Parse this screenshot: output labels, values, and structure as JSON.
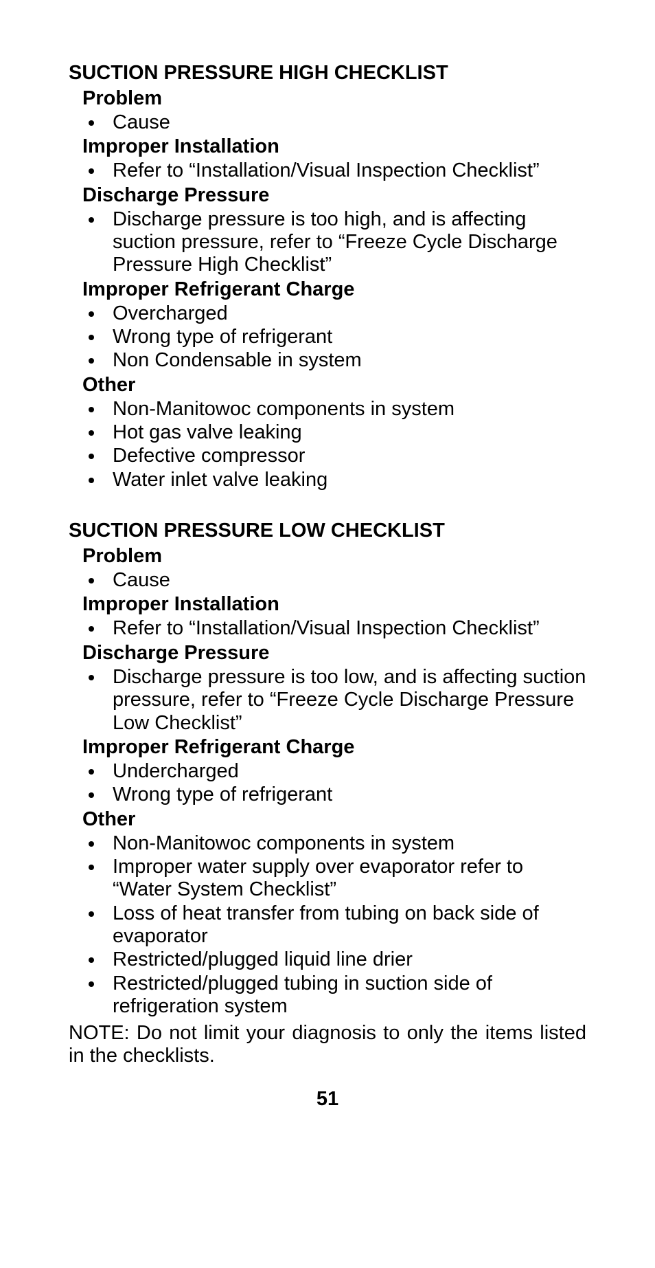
{
  "high": {
    "title": "SUCTION PRESSURE HIGH CHECKLIST",
    "sections": {
      "problem_label": "Problem",
      "problem_item": "Cause",
      "install_label": "Improper Installation",
      "install_item": "Refer to “Installation/Visual Inspection Checklist”",
      "discharge_label": "Discharge Pressure",
      "discharge_item": "Discharge pressure is too high, and is affecting suction pressure, refer to “Freeze Cycle Discharge Pressure High Checklist”",
      "charge_label": "Improper Refrigerant Charge",
      "charge_items": [
        "Overcharged",
        "Wrong type of refrigerant",
        "Non Condensable in system"
      ],
      "other_label": "Other",
      "other_items": [
        "Non-Manitowoc components in system",
        "Hot gas valve leaking",
        "Defective compressor",
        "Water inlet valve leaking"
      ]
    }
  },
  "low": {
    "title": "SUCTION PRESSURE LOW CHECKLIST",
    "sections": {
      "problem_label": "Problem",
      "problem_item": "Cause",
      "install_label": "Improper Installation",
      "install_item": "Refer to “Installation/Visual Inspection Checklist”",
      "discharge_label": "Discharge Pressure",
      "discharge_item": "Discharge pressure is too low, and is affecting suction pressure, refer to “Freeze Cycle Discharge Pressure Low Checklist”",
      "charge_label": "Improper Refrigerant Charge",
      "charge_items": [
        "Undercharged",
        "Wrong type of refrigerant"
      ],
      "other_label": "Other",
      "other_items": [
        "Non-Manitowoc components in system",
        "Improper water supply over evaporator refer to “Water System Checklist”",
        "Loss of heat transfer from tubing on back side of evaporator",
        "Restricted/plugged liquid line drier",
        "Restricted/plugged tubing in suction side of refrigeration system"
      ]
    }
  },
  "note": "NOTE: Do not limit your diagnosis to only the items listed in the checklists.",
  "page_number": "51"
}
